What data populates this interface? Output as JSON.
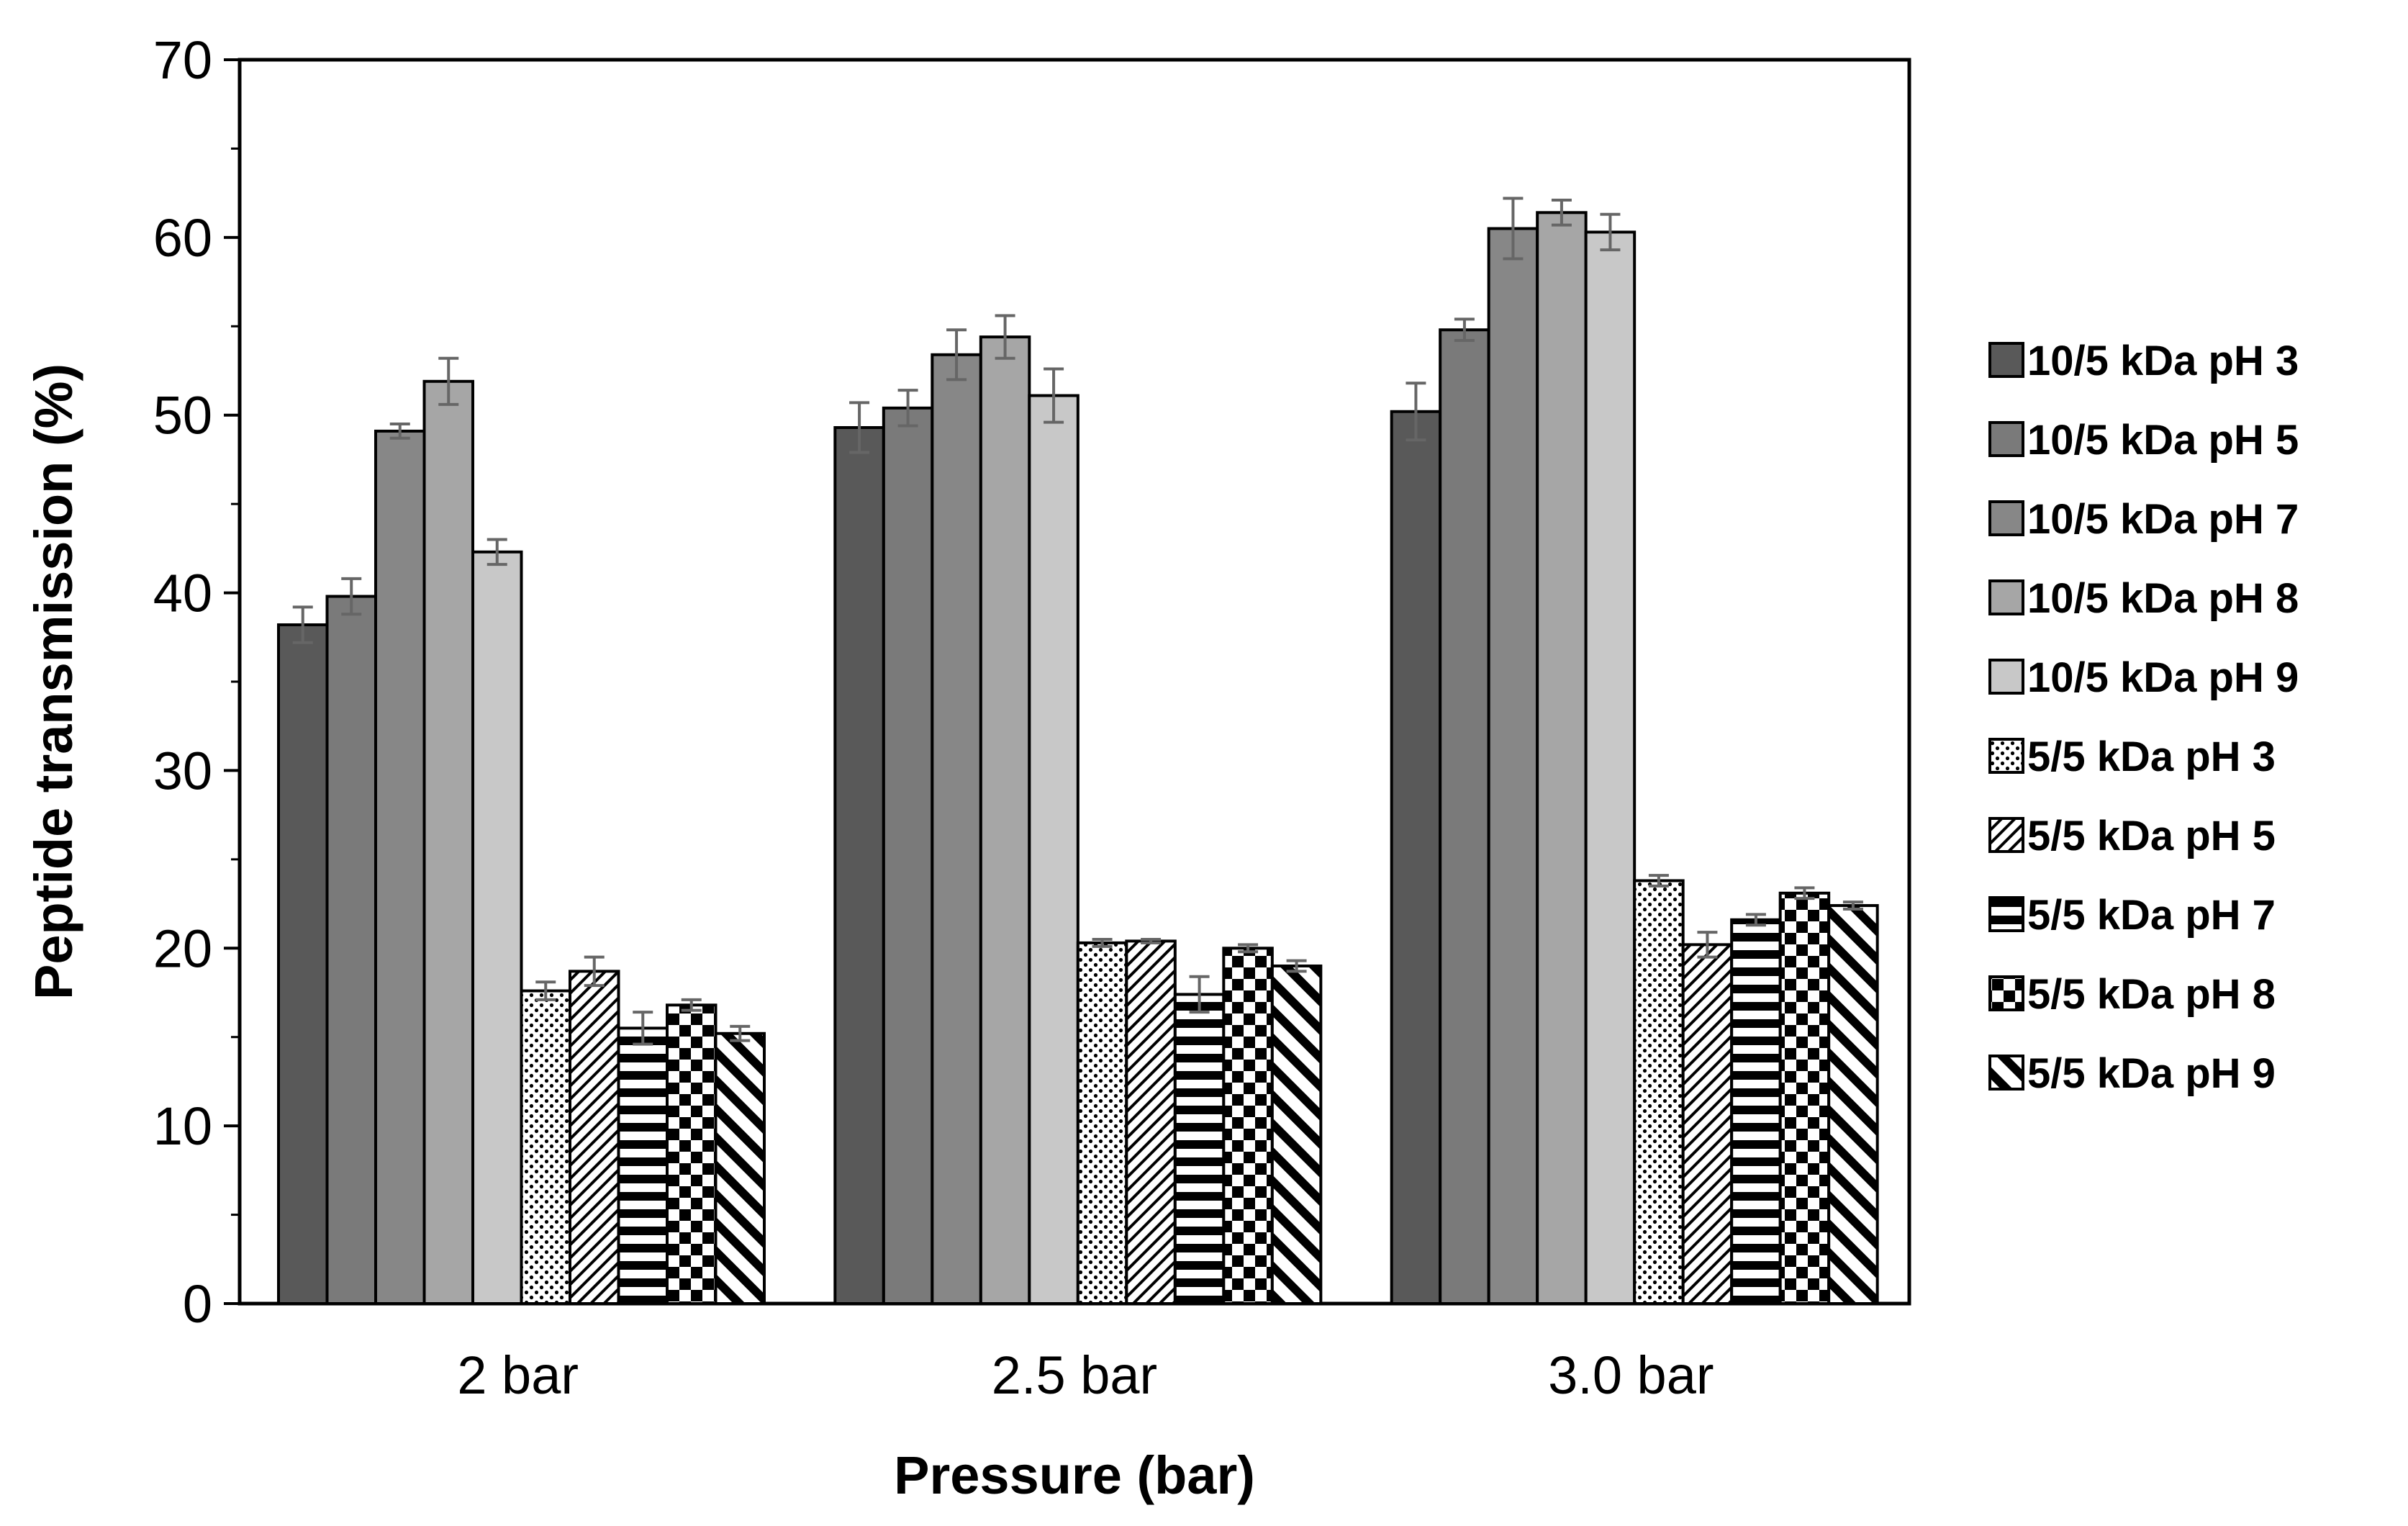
{
  "chart_data": {
    "type": "bar",
    "title": "",
    "xlabel": "Pressure (bar)",
    "ylabel": "Peptide transmission (%)",
    "ylim": [
      0,
      70
    ],
    "yticks": [
      "0",
      "10",
      "20",
      "30",
      "40",
      "50",
      "60",
      "70"
    ],
    "grid": false,
    "legend_position": "right",
    "categories": [
      "2 bar",
      "2.5 bar",
      "3.0 bar"
    ],
    "series": [
      {
        "name": "10/5 kDa pH 3",
        "values": [
          38.2,
          49.3,
          50.2
        ],
        "errors": [
          1.0,
          1.4,
          1.6
        ],
        "fill": "solid",
        "color": "#595959"
      },
      {
        "name": "10/5 kDa pH 5",
        "values": [
          39.8,
          50.4,
          54.8
        ],
        "errors": [
          1.0,
          1.0,
          0.6
        ],
        "fill": "solid",
        "color": "#7a7a7a"
      },
      {
        "name": "10/5 kDa pH 7",
        "values": [
          49.1,
          53.4,
          60.5
        ],
        "errors": [
          0.4,
          1.4,
          1.7
        ],
        "fill": "solid",
        "color": "#878787"
      },
      {
        "name": "10/5 kDa pH 8",
        "values": [
          51.9,
          54.4,
          61.4
        ],
        "errors": [
          1.3,
          1.2,
          0.7
        ],
        "fill": "solid",
        "color": "#a6a6a6"
      },
      {
        "name": "10/5 kDa pH 9",
        "values": [
          42.3,
          51.1,
          60.3
        ],
        "errors": [
          0.7,
          1.5,
          1.0
        ],
        "fill": "solid",
        "color": "#c8c8c8"
      },
      {
        "name": "5/5 kDa pH 3",
        "values": [
          17.6,
          20.3,
          23.8
        ],
        "errors": [
          0.5,
          0.2,
          0.3
        ],
        "fill": "dots",
        "color": "#000000"
      },
      {
        "name": "5/5 kDa pH 5",
        "values": [
          18.7,
          20.4,
          20.2
        ],
        "errors": [
          0.8,
          0.1,
          0.7
        ],
        "fill": "diagonal-thin",
        "color": "#000000"
      },
      {
        "name": "5/5 kDa pH 7",
        "values": [
          15.5,
          17.4,
          21.6
        ],
        "errors": [
          0.9,
          1.0,
          0.3
        ],
        "fill": "horizontal-stripes",
        "color": "#000000"
      },
      {
        "name": "5/5 kDa pH 8",
        "values": [
          16.8,
          20.0,
          23.1
        ],
        "errors": [
          0.3,
          0.2,
          0.3
        ],
        "fill": "checker",
        "color": "#000000"
      },
      {
        "name": "5/5 kDa pH 9",
        "values": [
          15.2,
          19.0,
          22.4
        ],
        "errors": [
          0.4,
          0.3,
          0.2
        ],
        "fill": "diagonal-thick",
        "color": "#000000"
      }
    ]
  }
}
